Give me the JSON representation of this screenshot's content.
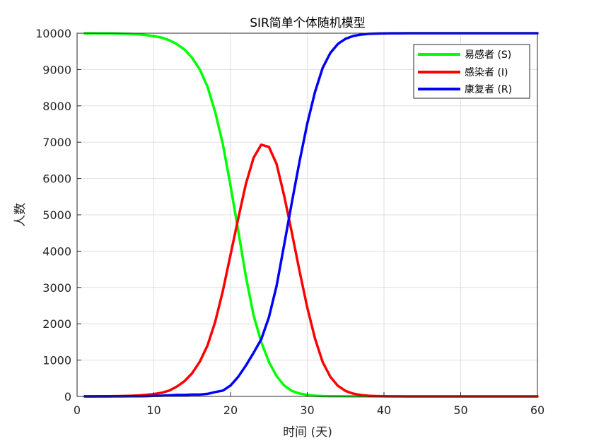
{
  "chart_data": {
    "type": "line",
    "title": "SIR简单个体随机模型",
    "xlabel": "时间 (天)",
    "ylabel": "人数",
    "xlim": [
      0,
      60
    ],
    "ylim": [
      0,
      10000
    ],
    "x_ticks": [
      "0",
      "10",
      "20",
      "30",
      "40",
      "50",
      "60"
    ],
    "y_ticks": [
      "0",
      "1000",
      "2000",
      "3000",
      "4000",
      "5000",
      "6000",
      "7000",
      "8000",
      "9000",
      "10000"
    ],
    "grid": true,
    "legend_position": "top-right",
    "x": [
      1,
      2,
      3,
      4,
      5,
      6,
      7,
      8,
      9,
      10,
      11,
      12,
      13,
      14,
      15,
      16,
      17,
      18,
      19,
      20,
      21,
      22,
      23,
      24,
      25,
      26,
      27,
      28,
      29,
      30,
      31,
      32,
      33,
      34,
      35,
      36,
      37,
      38,
      39,
      40,
      41,
      42,
      43,
      44,
      45,
      46,
      47,
      48,
      49,
      50,
      51,
      52,
      53,
      54,
      55,
      56,
      57,
      58,
      59,
      60
    ],
    "series": [
      {
        "name": "易感者 (S)",
        "color": "#00ff00",
        "values": [
          9999,
          9998,
          9997,
          9995,
          9992,
          9987,
          9980,
          9968,
          9950,
          9920,
          9880,
          9810,
          9700,
          9550,
          9320,
          9000,
          8530,
          7830,
          6950,
          5800,
          4560,
          3300,
          2230,
          1500,
          950,
          560,
          300,
          150,
          80,
          40,
          20,
          10,
          5,
          3,
          2,
          1,
          1,
          0,
          0,
          0,
          0,
          0,
          0,
          0,
          0,
          0,
          0,
          0,
          0,
          0,
          0,
          0,
          0,
          0,
          0,
          0,
          0,
          0,
          0,
          0
        ]
      },
      {
        "name": "感染者 (I)",
        "color": "#ff0000",
        "values": [
          1,
          2,
          3,
          5,
          7,
          11,
          17,
          27,
          42,
          65,
          100,
          160,
          270,
          420,
          640,
          960,
          1400,
          2050,
          2900,
          3900,
          4900,
          5850,
          6570,
          6930,
          6870,
          6400,
          5520,
          4500,
          3450,
          2450,
          1600,
          950,
          540,
          290,
          150,
          75,
          38,
          18,
          9,
          5,
          2,
          1,
          0,
          0,
          0,
          0,
          0,
          0,
          0,
          0,
          0,
          0,
          0,
          0,
          0,
          0,
          0,
          0,
          0,
          0
        ]
      },
      {
        "name": "康复者 (R)",
        "color": "#0000ff",
        "values": [
          0,
          0,
          0,
          0,
          1,
          2,
          3,
          5,
          8,
          15,
          20,
          30,
          40,
          40,
          50,
          50,
          70,
          120,
          160,
          300,
          540,
          850,
          1200,
          1570,
          2180,
          3040,
          4180,
          5350,
          6470,
          7510,
          8380,
          9040,
          9455,
          9707,
          9848,
          9924,
          9961,
          9982,
          9991,
          9995,
          9998,
          9999,
          10000,
          10000,
          10000,
          10000,
          10000,
          10000,
          10000,
          10000,
          10000,
          10000,
          10000,
          10000,
          10000,
          10000,
          10000,
          10000,
          10000,
          10000
        ]
      }
    ]
  }
}
